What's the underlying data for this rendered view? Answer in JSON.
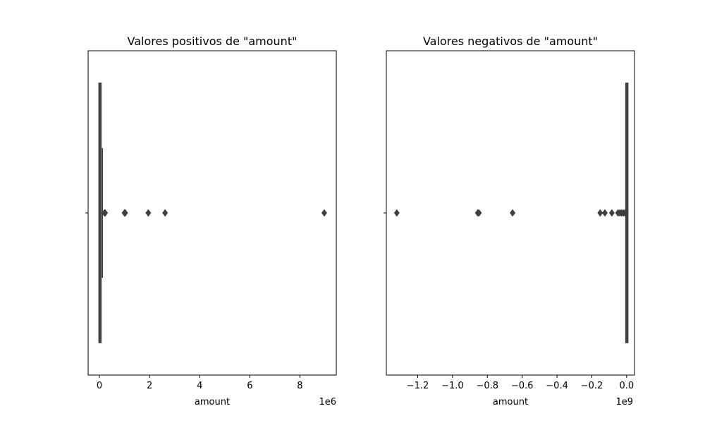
{
  "chart_data": [
    {
      "type": "boxplot",
      "title": "Valores positivos de \"amount\"",
      "xlabel": "amount",
      "ylabel": "",
      "axis_offset_label": "1e6",
      "scale_multiplier": 1000000,
      "xlim": [
        -0.45,
        9.45
      ],
      "xticks": [
        0,
        2,
        4,
        6,
        8
      ],
      "xtick_labels": [
        "0",
        "2",
        "4",
        "6",
        "8"
      ],
      "box": {
        "whisker_low": 0.0,
        "q1": 0.01,
        "median": 0.03,
        "q3": 0.06,
        "whisker_high": 0.12
      },
      "outliers": [
        0.2,
        0.23,
        1.0,
        1.03,
        1.95,
        2.62,
        8.97
      ],
      "box_color": "#3f3f3f",
      "grid": false,
      "legend": "none"
    },
    {
      "type": "boxplot",
      "title": "Valores negativos de \"amount\"",
      "xlabel": "amount",
      "ylabel": "",
      "axis_offset_label": "1e9",
      "scale_multiplier": 1000000000,
      "xlim": [
        -1.38,
        0.045
      ],
      "xticks": [
        -1.2,
        -1.0,
        -0.8,
        -0.6,
        -0.4,
        -0.2,
        0.0
      ],
      "xtick_labels": [
        "−1.2",
        "−1.0",
        "−0.8",
        "−0.6",
        "−0.4",
        "−0.2",
        "0.0"
      ],
      "box": {
        "whisker_low": -0.002,
        "q1": -0.001,
        "median": -0.0005,
        "q3": -0.0002,
        "whisker_high": 0.0
      },
      "outliers": [
        -1.32,
        -0.855,
        -0.848,
        -0.655,
        -0.152,
        -0.125,
        -0.085,
        -0.05,
        -0.04,
        -0.03,
        -0.02,
        -0.01,
        -0.005
      ],
      "box_color": "#3f3f3f",
      "grid": false,
      "legend": "none"
    }
  ]
}
